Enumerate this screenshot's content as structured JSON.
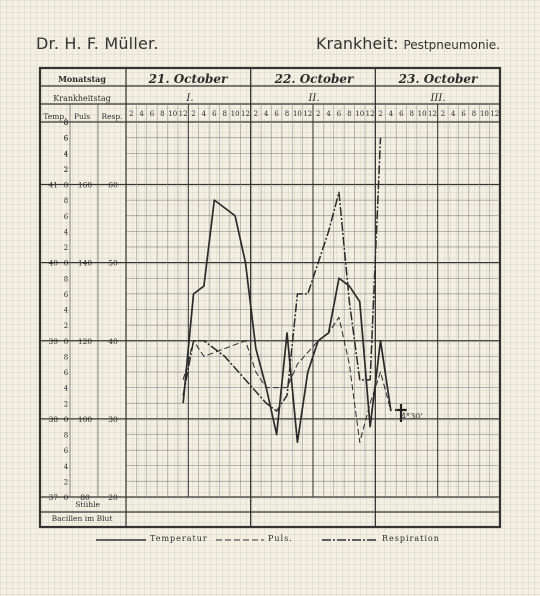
{
  "header": {
    "doctor": "Dr. H. F. Müller.",
    "disease_label": "Krankheit:",
    "disease": "Pestpneumonie."
  },
  "row_labels": {
    "month_day": "Monatstag",
    "sick_day": "Krankheitstag",
    "temp": "Temp.",
    "pulse": "Puls",
    "resp": "Resp.",
    "stool": "Stühle",
    "bacilli": "Bacillen im Blut"
  },
  "dates": [
    "21. October",
    "22. October",
    "23. October"
  ],
  "sick_days": [
    "I.",
    "II.",
    "III."
  ],
  "hour_labels": [
    "2",
    "4",
    "6",
    "8",
    "10",
    "12",
    "2",
    "4",
    "6",
    "8",
    "10",
    "12"
  ],
  "axis_labels": [
    {
      "temp_int": "41",
      "temp_dec": "0",
      "pulse": "160",
      "resp": "60"
    },
    {
      "temp_int": "40",
      "temp_dec": "0",
      "pulse": "140",
      "resp": "50"
    },
    {
      "temp_int": "39",
      "temp_dec": "0",
      "pulse": "120",
      "resp": "40"
    },
    {
      "temp_int": "38",
      "temp_dec": "0",
      "pulse": "100",
      "resp": "30"
    },
    {
      "temp_int": "37",
      "temp_dec": "0",
      "pulse": "80",
      "resp": "20"
    }
  ],
  "decimal_ticks": [
    "8",
    "6",
    "4",
    "2"
  ],
  "death_note": "4°30'",
  "legend": {
    "temperature": "Temperatur",
    "pulse": "Puls.",
    "respiration": "Respiration"
  },
  "chart_data": {
    "type": "line",
    "x_unit": "slot index (2-hour intervals from 21. October 2 a.m.)",
    "y_unit": "temperature °C",
    "ylim": [
      37.0,
      41.8
    ],
    "series": [
      {
        "name": "Temperatur",
        "x": [
          5,
          6,
          7,
          8,
          10,
          11,
          12,
          13,
          14,
          15,
          16,
          17,
          18,
          19,
          20,
          21,
          22,
          23,
          24,
          25
        ],
        "y": [
          38.2,
          39.6,
          39.7,
          40.8,
          40.6,
          40.0,
          38.9,
          38.4,
          37.8,
          39.1,
          37.7,
          38.6,
          39.0,
          39.1,
          39.8,
          39.7,
          39.5,
          37.9,
          39.0,
          38.1
        ]
      },
      {
        "name": "Puls.",
        "x": [
          5,
          6,
          7,
          9,
          11,
          12,
          13,
          15,
          16,
          18,
          19,
          20,
          21,
          22,
          23,
          24,
          25
        ],
        "y": [
          38.5,
          39.0,
          38.8,
          38.9,
          39.0,
          38.6,
          38.4,
          38.4,
          38.7,
          39.0,
          39.1,
          39.3,
          38.7,
          37.7,
          38.2,
          38.6,
          38.1
        ]
      },
      {
        "name": "Respiration",
        "x": [
          5,
          6,
          7,
          9,
          11,
          13,
          14,
          15,
          16,
          17,
          18,
          19,
          20,
          21,
          22,
          23,
          24
        ],
        "y": [
          38.3,
          39.0,
          39.0,
          38.8,
          38.5,
          38.2,
          38.1,
          38.3,
          39.6,
          39.6,
          40.0,
          40.4,
          40.9,
          39.5,
          38.5,
          38.5,
          41.6
        ]
      }
    ]
  }
}
